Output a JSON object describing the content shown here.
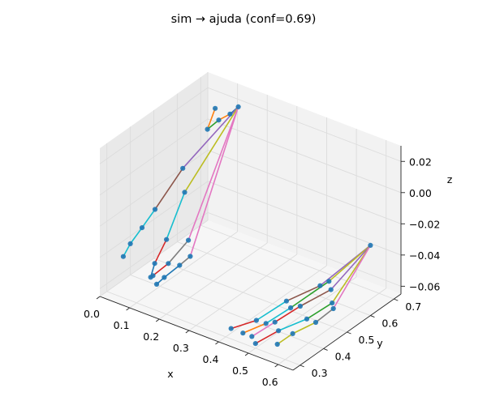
{
  "chart_data": {
    "type": "3d-line-scatter",
    "title": "sim → ajuda (conf=0.69)",
    "xlabel": "x",
    "ylabel": "y",
    "zlabel": "z",
    "xlim": [
      0.0,
      0.65
    ],
    "ylim": [
      0.27,
      0.73
    ],
    "zlim": [
      -0.065,
      0.03
    ],
    "xticks": [
      "0.0",
      "0.1",
      "0.2",
      "0.3",
      "0.4",
      "0.5",
      "0.6"
    ],
    "yticks": [
      "0.3",
      "0.4",
      "0.5",
      "0.6",
      "0.7"
    ],
    "zticks": [
      "0.02",
      "0.00",
      "−0.02",
      "−0.04",
      "−0.06"
    ],
    "grid": true,
    "marker_color": "#1f77b4",
    "bone_colors": [
      "#ff7f0e",
      "#2ca02c",
      "#d62728",
      "#9467bd",
      "#8c564b",
      "#e377c2",
      "#7f7f7f",
      "#bcbd22",
      "#17becf",
      "#1f77b4"
    ],
    "series": [
      {
        "points": [
          [
            0.15,
            0.67,
            0.025
          ],
          [
            0.13,
            0.66,
            0.02
          ],
          [
            0.1,
            0.65,
            0.015
          ],
          [
            0.07,
            0.64,
            0.008
          ],
          [
            0.08,
            0.66,
            0.02
          ],
          [
            0.05,
            0.56,
            -0.01
          ],
          [
            0.02,
            0.48,
            -0.03
          ],
          [
            0.0,
            0.45,
            -0.04
          ],
          [
            0.0,
            0.4,
            -0.045
          ],
          [
            0.0,
            0.37,
            -0.05
          ],
          [
            0.08,
            0.53,
            -0.02
          ],
          [
            0.09,
            0.44,
            -0.04
          ],
          [
            0.09,
            0.39,
            -0.05
          ],
          [
            0.1,
            0.36,
            -0.055
          ],
          [
            0.14,
            0.47,
            -0.04
          ],
          [
            0.12,
            0.41,
            -0.05
          ],
          [
            0.1,
            0.37,
            -0.055
          ],
          [
            0.17,
            0.44,
            -0.045
          ],
          [
            0.15,
            0.42,
            -0.05
          ],
          [
            0.13,
            0.38,
            -0.055
          ],
          [
            0.12,
            0.36,
            -0.058
          ]
        ],
        "bones": [
          [
            4,
            3,
            0
          ],
          [
            3,
            2,
            1
          ],
          [
            2,
            1,
            0
          ],
          [
            1,
            0,
            9
          ],
          [
            0,
            5,
            3
          ],
          [
            5,
            6,
            4
          ],
          [
            6,
            7,
            8
          ],
          [
            7,
            8,
            8
          ],
          [
            8,
            9,
            8
          ],
          [
            0,
            10,
            7
          ],
          [
            10,
            11,
            8
          ],
          [
            11,
            12,
            2
          ],
          [
            12,
            13,
            9
          ],
          [
            0,
            14,
            5
          ],
          [
            14,
            15,
            6
          ],
          [
            15,
            16,
            2
          ],
          [
            16,
            13,
            2
          ],
          [
            0,
            17,
            5
          ],
          [
            17,
            18,
            6
          ],
          [
            18,
            19,
            9
          ],
          [
            19,
            20,
            9
          ]
        ]
      },
      {
        "points": [
          [
            0.65,
            0.6,
            -0.02
          ],
          [
            0.52,
            0.55,
            -0.05
          ],
          [
            0.47,
            0.47,
            -0.055
          ],
          [
            0.44,
            0.38,
            -0.06
          ],
          [
            0.41,
            0.31,
            -0.06
          ],
          [
            0.55,
            0.55,
            -0.045
          ],
          [
            0.5,
            0.45,
            -0.055
          ],
          [
            0.48,
            0.37,
            -0.058
          ],
          [
            0.45,
            0.31,
            -0.06
          ],
          [
            0.58,
            0.52,
            -0.045
          ],
          [
            0.54,
            0.44,
            -0.05
          ],
          [
            0.51,
            0.37,
            -0.055
          ],
          [
            0.48,
            0.31,
            -0.06
          ],
          [
            0.6,
            0.5,
            -0.05
          ],
          [
            0.57,
            0.43,
            -0.055
          ],
          [
            0.53,
            0.36,
            -0.058
          ],
          [
            0.5,
            0.3,
            -0.062
          ],
          [
            0.62,
            0.48,
            -0.05
          ],
          [
            0.6,
            0.43,
            -0.055
          ],
          [
            0.57,
            0.37,
            -0.058
          ],
          [
            0.55,
            0.33,
            -0.062
          ]
        ],
        "bones": [
          [
            0,
            1,
            3
          ],
          [
            1,
            2,
            4
          ],
          [
            2,
            3,
            8
          ],
          [
            3,
            4,
            2
          ],
          [
            0,
            5,
            7
          ],
          [
            5,
            6,
            1
          ],
          [
            6,
            7,
            8
          ],
          [
            7,
            8,
            0
          ],
          [
            0,
            9,
            3
          ],
          [
            9,
            10,
            4
          ],
          [
            10,
            11,
            2
          ],
          [
            11,
            12,
            5
          ],
          [
            0,
            13,
            7
          ],
          [
            13,
            14,
            1
          ],
          [
            14,
            15,
            8
          ],
          [
            15,
            16,
            2
          ],
          [
            0,
            17,
            5
          ],
          [
            17,
            18,
            6
          ],
          [
            18,
            19,
            7
          ],
          [
            19,
            20,
            7
          ]
        ]
      }
    ]
  }
}
